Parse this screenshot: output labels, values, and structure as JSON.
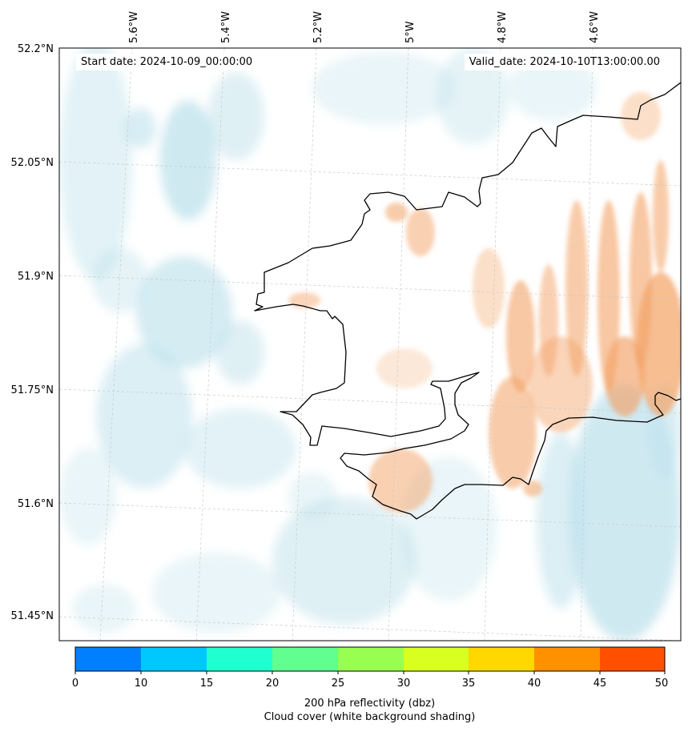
{
  "header": {
    "start_date": "Start date: 2024-10-09_00:00:00",
    "valid_date": "Valid_date: 2024-10-10T13:00:00.00"
  },
  "map": {
    "longitude_ticks": [
      "5.6°W",
      "5.4°W",
      "5.2°W",
      "5°W",
      "4.8°W",
      "4.6°W"
    ],
    "latitude_ticks": [
      "52.2°N",
      "52.05°N",
      "51.9°N",
      "51.75°N",
      "51.6°N",
      "51.45°N"
    ],
    "cloud_cover_color": "#a9d8e6",
    "reflectivity_shading_color": "#f0924a",
    "coastline_color": "#000000"
  },
  "colorbar": {
    "ticks": [
      "0",
      "10",
      "15",
      "20",
      "25",
      "30",
      "35",
      "40",
      "45",
      "50"
    ],
    "colors": [
      "#0080ff",
      "#00c8ff",
      "#20ffd0",
      "#60ff90",
      "#98ff50",
      "#d8ff20",
      "#ffd800",
      "#ff9000",
      "#ff5000"
    ],
    "label_line1": "200 hPa reflectivity (dbz)",
    "label_line2": "Cloud cover (white background shading)"
  }
}
